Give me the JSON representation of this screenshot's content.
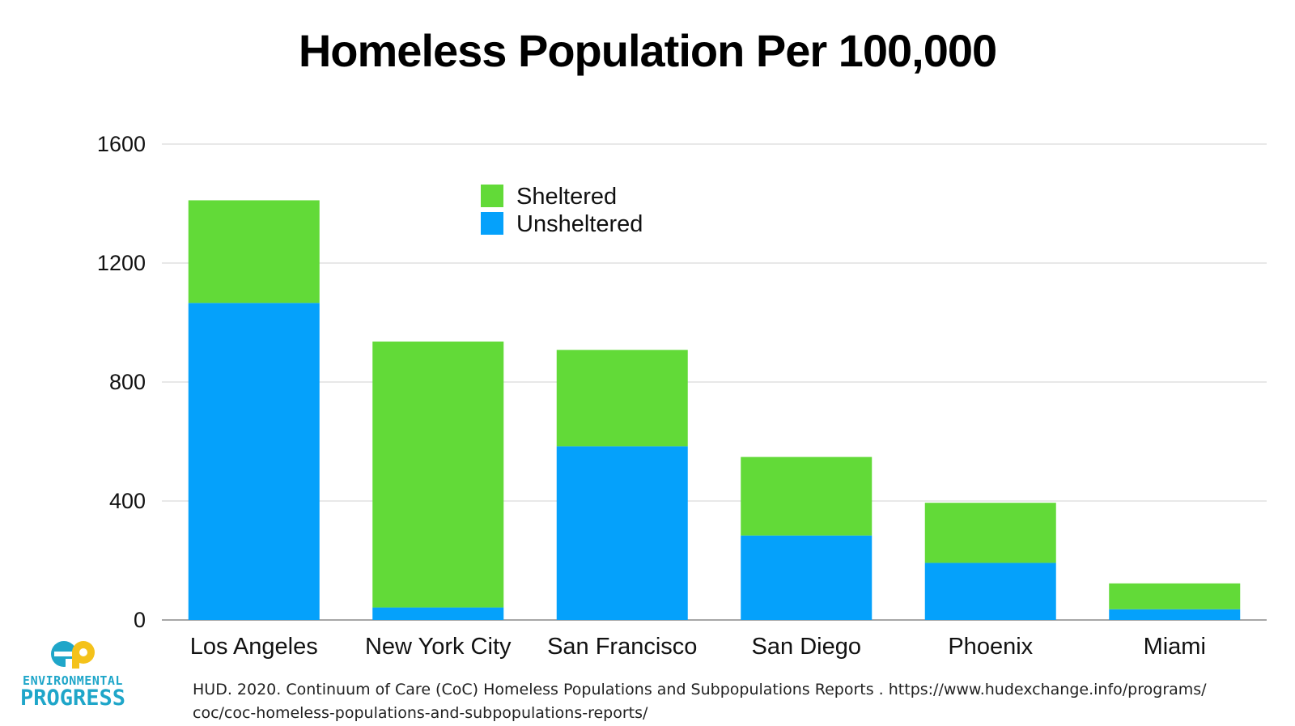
{
  "chart_data": {
    "type": "bar",
    "stacked": true,
    "title": "Homeless Population Per 100,000",
    "xlabel": "",
    "ylabel": "",
    "categories": [
      "Los Angeles",
      "New York City",
      "San Francisco",
      "San Diego",
      "Phoenix",
      "Miami"
    ],
    "series": [
      {
        "name": "Unsheltered",
        "color": "#05a1fb",
        "values": [
          1066,
          42,
          584,
          284,
          192,
          36
        ]
      },
      {
        "name": "Sheltered",
        "color": "#62da38",
        "values": [
          345,
          894,
          324,
          264,
          202,
          87
        ]
      }
    ],
    "ylim": [
      0,
      1600
    ],
    "yticks": [
      0,
      400,
      800,
      1200,
      1600
    ],
    "grid": true,
    "legend": "top-center"
  },
  "footer": {
    "source_line1": "HUD. 2020. Continuum of Care (CoC) Homeless Populations and Subpopulations Reports . https://www.hudexchange.info/programs/",
    "source_line2": "coc/coc-homeless-populations-and-subpopulations-reports/"
  },
  "logo": {
    "line1": "ENVIRONMENTAL",
    "line2": "PROGRESS",
    "colors": {
      "blue": "#1fa6c9",
      "yellow": "#f4c21b"
    }
  }
}
